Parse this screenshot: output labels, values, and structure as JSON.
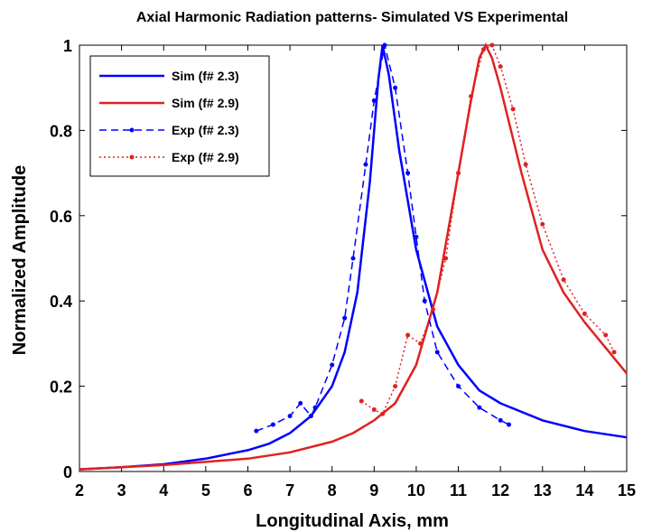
{
  "chart_data": {
    "type": "line",
    "title": "Axial Harmonic Radiation patterns- Simulated VS Experimental",
    "x_label": "Longitudinal Axis, mm",
    "y_label": "Normalized Amplitude",
    "xlim": [
      2,
      15
    ],
    "ylim": [
      0,
      1
    ],
    "xticks": [
      2,
      3,
      4,
      5,
      6,
      7,
      8,
      9,
      10,
      11,
      12,
      13,
      14,
      15
    ],
    "yticks": [
      0,
      0.2,
      0.4,
      0.6,
      0.8,
      1
    ],
    "legend": "upper-left",
    "series": [
      {
        "name": "Sim (f# 2.3)",
        "color": "#0000ff",
        "dash": "solid",
        "marker": false,
        "x": [
          2,
          3,
          4,
          5,
          6,
          6.5,
          7,
          7.5,
          8,
          8.3,
          8.6,
          8.9,
          9.1,
          9.2,
          9.35,
          9.6,
          10,
          10.5,
          11,
          11.5,
          12,
          13,
          14,
          15
        ],
        "values": [
          0.005,
          0.01,
          0.017,
          0.03,
          0.05,
          0.065,
          0.09,
          0.13,
          0.2,
          0.28,
          0.42,
          0.68,
          0.92,
          1,
          0.93,
          0.75,
          0.52,
          0.34,
          0.25,
          0.19,
          0.16,
          0.12,
          0.095,
          0.08
        ]
      },
      {
        "name": "Sim (f# 2.9)",
        "color": "#e02020",
        "dash": "solid",
        "marker": false,
        "x": [
          2,
          4,
          6,
          7,
          8,
          8.5,
          9,
          9.5,
          10,
          10.5,
          11,
          11.3,
          11.5,
          11.65,
          11.8,
          12,
          12.5,
          13,
          13.5,
          14,
          14.5,
          15
        ],
        "values": [
          0.005,
          0.015,
          0.03,
          0.045,
          0.07,
          0.09,
          0.12,
          0.16,
          0.25,
          0.42,
          0.7,
          0.87,
          0.97,
          1,
          0.97,
          0.9,
          0.7,
          0.52,
          0.42,
          0.35,
          0.29,
          0.23
        ]
      },
      {
        "name": "Exp (f# 2.3)",
        "color": "#0000ff",
        "dash": "dashed",
        "marker": true,
        "x": [
          6.2,
          6.6,
          7,
          7.25,
          7.5,
          7.6,
          8,
          8.3,
          8.5,
          8.8,
          9,
          9.25,
          9.5,
          9.8,
          10,
          10.2,
          10.5,
          11,
          11.5,
          12,
          12.2
        ],
        "values": [
          0.095,
          0.11,
          0.13,
          0.16,
          0.13,
          0.15,
          0.25,
          0.36,
          0.5,
          0.72,
          0.87,
          1,
          0.9,
          0.7,
          0.55,
          0.4,
          0.28,
          0.2,
          0.15,
          0.12,
          0.11
        ]
      },
      {
        "name": "Exp (f# 2.9)",
        "color": "#e02020",
        "dash": "dotted",
        "marker": true,
        "x": [
          8.7,
          9,
          9.2,
          9.5,
          9.8,
          10.1,
          10.4,
          10.7,
          11,
          11.3,
          11.6,
          11.8,
          12,
          12.3,
          12.6,
          13,
          13.5,
          14,
          14.5,
          14.7
        ],
        "values": [
          0.165,
          0.145,
          0.135,
          0.2,
          0.32,
          0.3,
          0.38,
          0.5,
          0.7,
          0.88,
          0.99,
          1,
          0.95,
          0.85,
          0.72,
          0.58,
          0.45,
          0.37,
          0.32,
          0.28
        ]
      }
    ]
  }
}
